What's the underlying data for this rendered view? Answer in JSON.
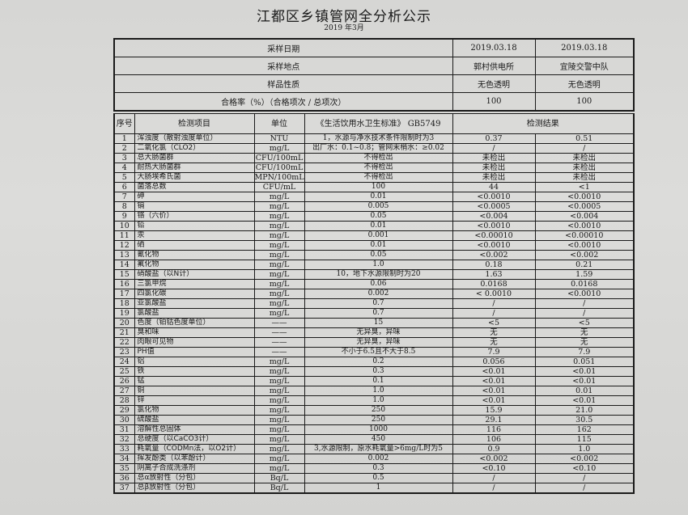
{
  "title": "江都区乡镇管网全分析公示",
  "subtitle": "2019 年3月",
  "header_rows": [
    {
      "label": "采样日期",
      "values": [
        "2019.03.18",
        "2019.03.18"
      ]
    },
    {
      "label": "采样地点",
      "values": [
        "郭村供电所",
        "宜陵交警中队"
      ]
    },
    {
      "label": "样品性质",
      "values": [
        "无色透明",
        "无色透明"
      ]
    },
    {
      "label": "合格率（%）（合格项次 / 总项次）",
      "values": [
        "100",
        "100"
      ]
    }
  ],
  "columns": {
    "no": "序号",
    "item": "检测项目",
    "unit": "单位",
    "standard": "《生活饮用水卫生标准》 GB5749",
    "result": "检测结果"
  },
  "rows": [
    [
      "1",
      "浑浊度（散射浊度单位）",
      "NTU",
      "1，水源与净水技术条件限制时为3",
      "0.37",
      "0.51"
    ],
    [
      "2",
      "二氧化氯（CLO2）",
      "mg/L",
      "出厂水：0.1~0.8；管网末梢水：≥0.02",
      "/",
      "/"
    ],
    [
      "3",
      "总大肠菌群",
      "CFU/100mL",
      "不得检出",
      "未检出",
      "未检出"
    ],
    [
      "4",
      "耐热大肠菌群",
      "CFU/100mL",
      "不得检出",
      "未检出",
      "未检出"
    ],
    [
      "5",
      "大肠埃希氏菌",
      "MPN/100mL",
      "不得检出",
      "未检出",
      "未检出"
    ],
    [
      "6",
      "菌落总数",
      "CFU/mL",
      "100",
      "44",
      "<1"
    ],
    [
      "7",
      "砷",
      "mg/L",
      "0.01",
      "<0.0010",
      "<0.0010"
    ],
    [
      "8",
      "镉",
      "mg/L",
      "0.005",
      "<0.0005",
      "<0.0005"
    ],
    [
      "9",
      "铬（六价）",
      "mg/L",
      "0.05",
      "<0.004",
      "<0.004"
    ],
    [
      "10",
      "铅",
      "mg/L",
      "0.01",
      "<0.0010",
      "<0.0010"
    ],
    [
      "11",
      "汞",
      "mg/L",
      "0.001",
      "<0.00010",
      "<0.00010"
    ],
    [
      "12",
      "硒",
      "mg/L",
      "0.01",
      "<0.0010",
      "<0.0010"
    ],
    [
      "13",
      "氰化物",
      "mg/L",
      "0.05",
      "<0.002",
      "<0.002"
    ],
    [
      "14",
      "氟化物",
      "mg/L",
      "1.0",
      "0.18",
      "0.21"
    ],
    [
      "15",
      "硝酸盐（以N计）",
      "mg/L",
      "10，地下水源限制时为20",
      "1.63",
      "1.59"
    ],
    [
      "16",
      "三氯甲烷",
      "mg/L",
      "0.06",
      "0.0168",
      "0.0168"
    ],
    [
      "17",
      "四氯化碳",
      "mg/L",
      "0.002",
      "< 0.0010",
      "<0.0010"
    ],
    [
      "18",
      "亚氯酸盐",
      "mg/L",
      "0.7",
      "/",
      "/"
    ],
    [
      "19",
      "氯酸盐",
      "mg/L",
      "0.7",
      "/",
      "/"
    ],
    [
      "20",
      "色度（铂钴色度单位）",
      "——",
      "15",
      "<5",
      "<5"
    ],
    [
      "21",
      "臭和味",
      "——",
      "无异臭，异味",
      "无",
      "无"
    ],
    [
      "22",
      "肉眼可见物",
      "——",
      "无异臭，异味",
      "无",
      "无"
    ],
    [
      "23",
      "PH值",
      "——",
      "不小于6.5且不大于8.5",
      "7.9",
      "7.9"
    ],
    [
      "24",
      "铝",
      "mg/L",
      "0.2",
      "0.056",
      "0.051"
    ],
    [
      "25",
      "铁",
      "mg/L",
      "0.3",
      "<0.01",
      "<0.01"
    ],
    [
      "26",
      "锰",
      "mg/L",
      "0.1",
      "<0.01",
      "<0.01"
    ],
    [
      "27",
      "铜",
      "mg/L",
      "1.0",
      "<0.01",
      "0.01"
    ],
    [
      "28",
      "锌",
      "mg/L",
      "1.0",
      "<0.01",
      "<0.01"
    ],
    [
      "29",
      "氯化物",
      "mg/L",
      "250",
      "15.9",
      "21.0"
    ],
    [
      "30",
      "硫酸盐",
      "mg/L",
      "250",
      "29.1",
      "30.5"
    ],
    [
      "31",
      "溶解性总固体",
      "mg/L",
      "1000",
      "116",
      "162"
    ],
    [
      "32",
      "总硬度（以CaCO3计）",
      "mg/L",
      "450",
      "106",
      "115"
    ],
    [
      "33",
      "耗氧量（CODMn法，以O2计）",
      "mg/L",
      "3,水源限制，原水耗氧量>6mg/L时为5",
      "0.9",
      "1.0"
    ],
    [
      "34",
      "挥发酚类（以苯酚计）",
      "mg/L",
      "0.002",
      "<0.002",
      "<0.002"
    ],
    [
      "35",
      "阴离子合成洗涤剂",
      "mg/L",
      "0.3",
      "<0.10",
      "<0.10"
    ],
    [
      "36",
      "总α放射性（分包）",
      "Bq/L",
      "0.5",
      "/",
      "/"
    ],
    [
      "37",
      "总β放射性（分包）",
      "Bq/L",
      "1",
      "/",
      "/"
    ]
  ]
}
